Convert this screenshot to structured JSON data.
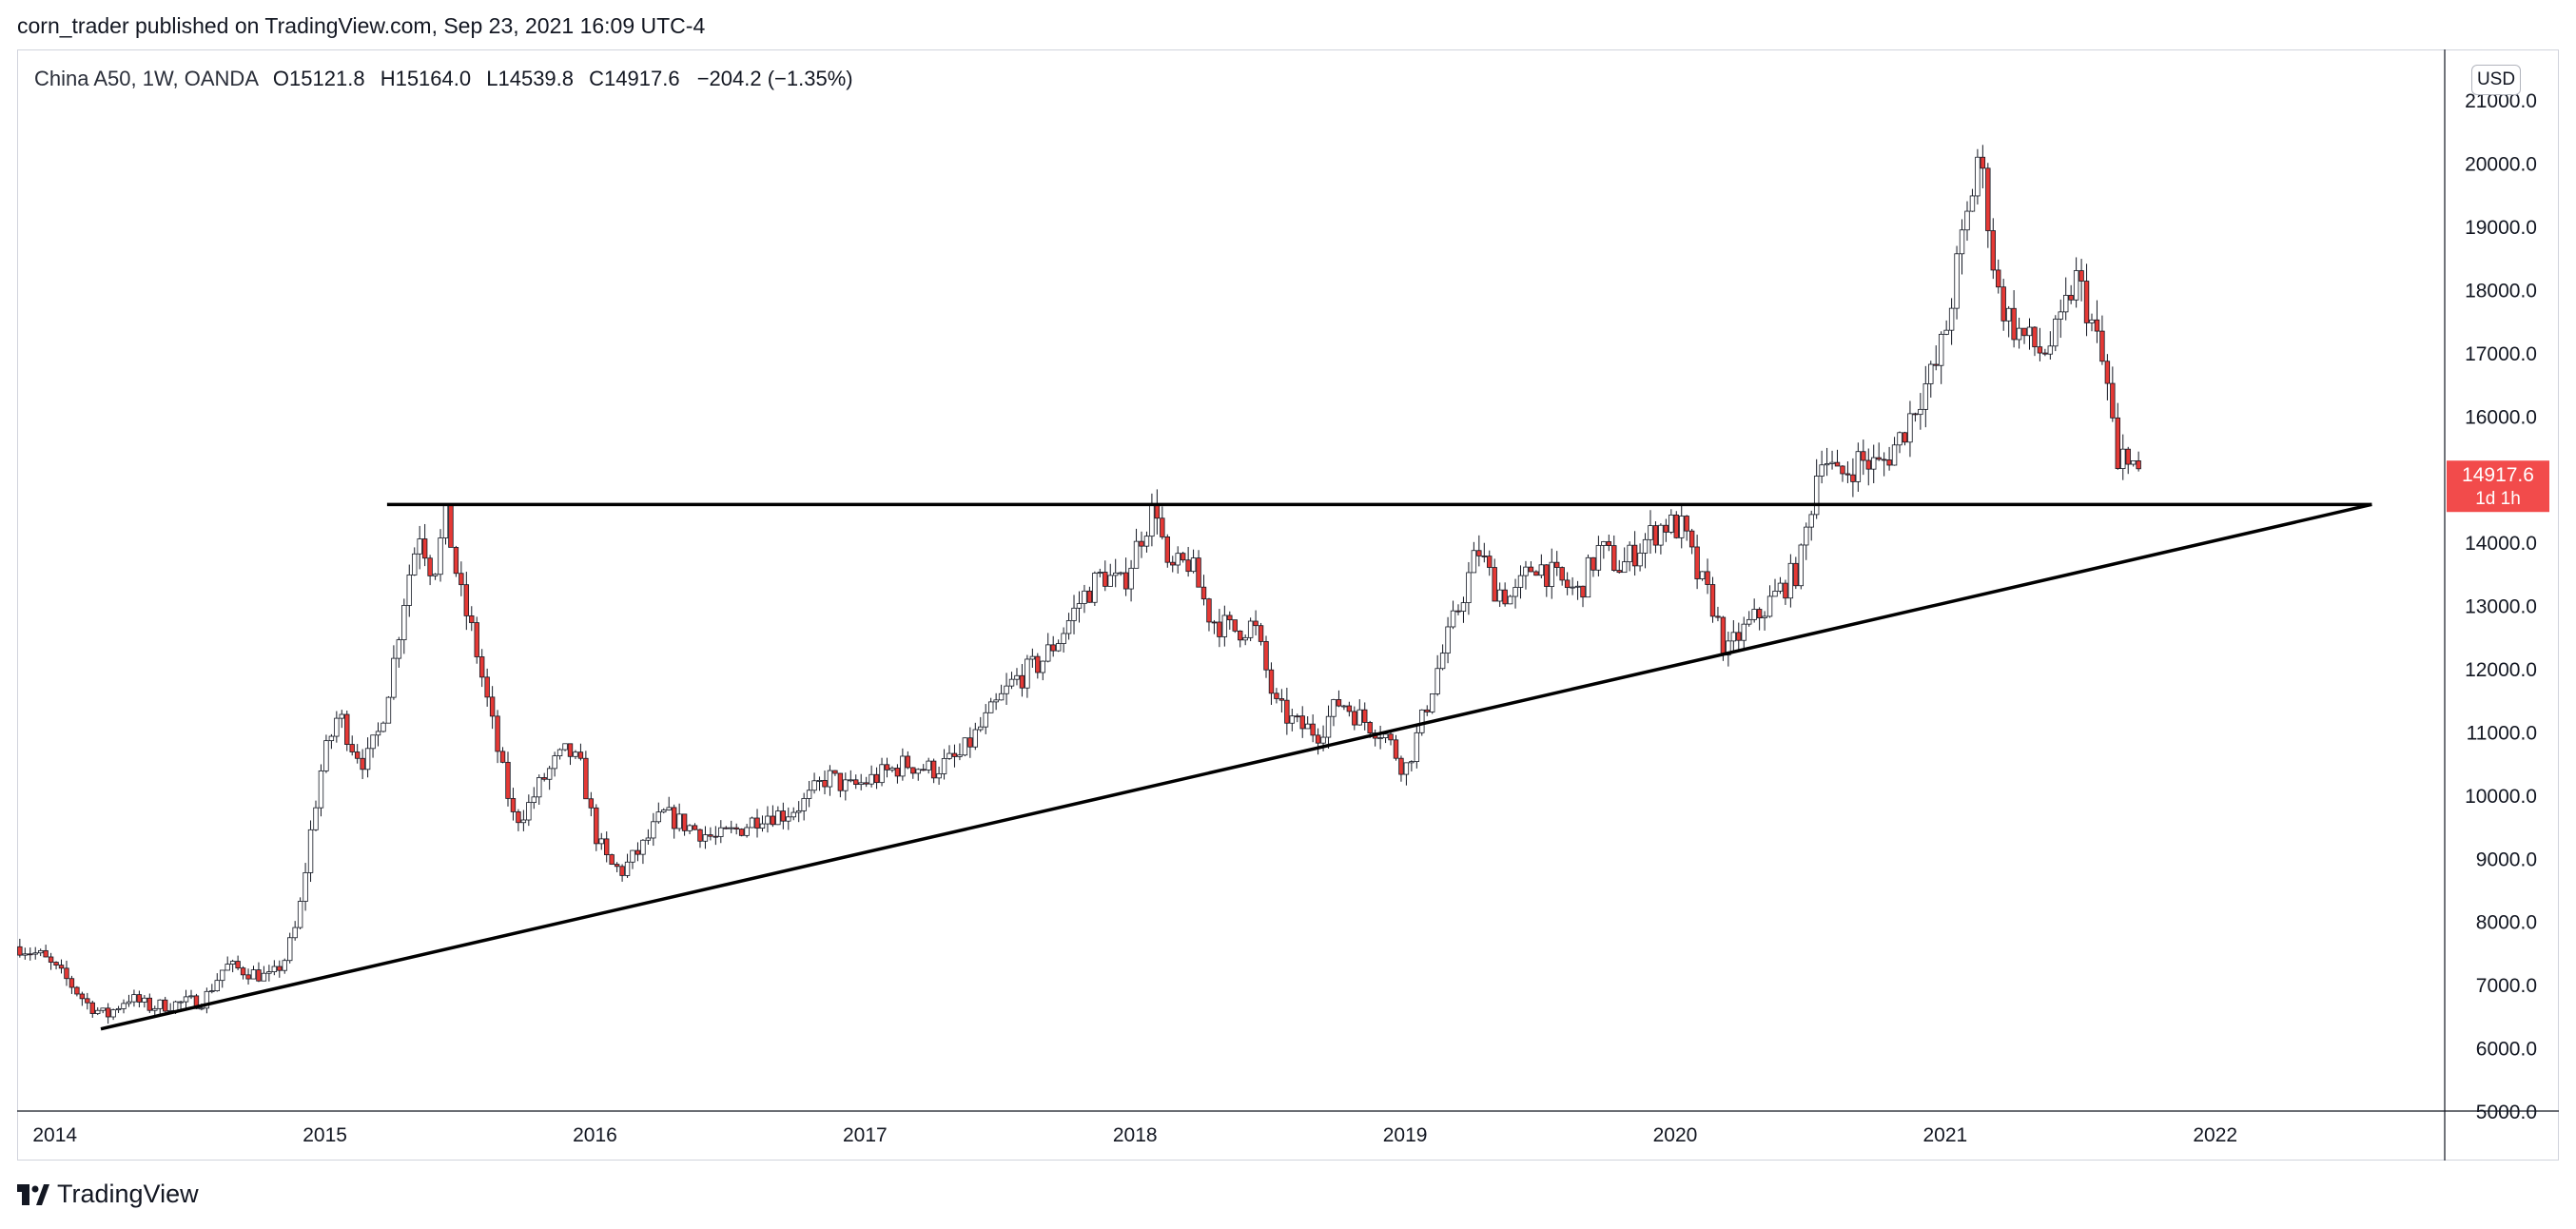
{
  "header": {
    "published": "corn_trader published on TradingView.com, Sep 23, 2021 16:09 UTC-4"
  },
  "legend": {
    "symbol": "China A50, 1W, OANDA",
    "open_label": "O",
    "open": "15121.8",
    "high_label": "H",
    "high": "15164.0",
    "low_label": "L",
    "low": "14539.8",
    "close_label": "C",
    "close": "14917.6",
    "change": "−204.2 (−1.35%)"
  },
  "currency_button": "USD",
  "price_tag": {
    "price": "14917.6",
    "countdown": "1d 1h"
  },
  "footer": {
    "brand": "TradingView"
  },
  "colors": {
    "up": "#ffffff",
    "down": "#e53935",
    "price_tag": "#f24b4b",
    "grid_text": "#131722"
  },
  "chart_data": {
    "type": "candlestick",
    "title": "China A50, 1W, OANDA",
    "ylim": [
      5000,
      21500
    ],
    "y_ticks": [
      "21000.0",
      "20000.0",
      "19000.0",
      "18000.0",
      "17000.0",
      "16000.0",
      "14000.0",
      "13000.0",
      "12000.0",
      "11000.0",
      "10000.0",
      "9000.0",
      "8000.0",
      "7000.0",
      "6000.0",
      "5000.0"
    ],
    "x_ticks": [
      "2014",
      "2015",
      "2016",
      "2017",
      "2018",
      "2019",
      "2020",
      "2021",
      "2022"
    ],
    "x_range": [
      2013.86,
      2022.85
    ],
    "close_path": [
      [
        2013.87,
        7600
      ],
      [
        2013.95,
        7450
      ],
      [
        2014.05,
        7050
      ],
      [
        2014.12,
        6700
      ],
      [
        2014.19,
        6500
      ],
      [
        2014.27,
        6800
      ],
      [
        2014.35,
        6650
      ],
      [
        2014.45,
        6700
      ],
      [
        2014.55,
        6750
      ],
      [
        2014.63,
        7300
      ],
      [
        2014.72,
        7200
      ],
      [
        2014.8,
        7100
      ],
      [
        2014.85,
        7400
      ],
      [
        2014.9,
        8000
      ],
      [
        2014.95,
        9500
      ],
      [
        2014.99,
        10500
      ],
      [
        2015.05,
        11300
      ],
      [
        2015.1,
        10800
      ],
      [
        2015.15,
        10500
      ],
      [
        2015.2,
        11000
      ],
      [
        2015.25,
        12000
      ],
      [
        2015.3,
        13300
      ],
      [
        2015.35,
        14200
      ],
      [
        2015.4,
        13500
      ],
      [
        2015.45,
        14400
      ],
      [
        2015.5,
        13200
      ],
      [
        2015.55,
        12500
      ],
      [
        2015.6,
        11500
      ],
      [
        2015.65,
        10500
      ],
      [
        2015.7,
        9600
      ],
      [
        2015.75,
        9800
      ],
      [
        2015.8,
        10200
      ],
      [
        2015.85,
        10500
      ],
      [
        2015.9,
        10700
      ],
      [
        2015.95,
        10400
      ],
      [
        2016.0,
        9400
      ],
      [
        2016.05,
        8900
      ],
      [
        2016.1,
        8800
      ],
      [
        2016.18,
        9200
      ],
      [
        2016.25,
        9700
      ],
      [
        2016.35,
        9500
      ],
      [
        2016.45,
        9300
      ],
      [
        2016.55,
        9500
      ],
      [
        2016.62,
        9700
      ],
      [
        2016.7,
        9700
      ],
      [
        2016.78,
        9900
      ],
      [
        2016.86,
        10300
      ],
      [
        2016.94,
        10100
      ],
      [
        2017.05,
        10300
      ],
      [
        2017.15,
        10500
      ],
      [
        2017.25,
        10400
      ],
      [
        2017.35,
        10600
      ],
      [
        2017.45,
        11200
      ],
      [
        2017.55,
        11800
      ],
      [
        2017.65,
        12100
      ],
      [
        2017.72,
        12500
      ],
      [
        2017.8,
        13100
      ],
      [
        2017.88,
        13500
      ],
      [
        2017.95,
        13300
      ],
      [
        2018.03,
        14200
      ],
      [
        2018.08,
        14600
      ],
      [
        2018.12,
        13500
      ],
      [
        2018.2,
        13700
      ],
      [
        2018.28,
        12800
      ],
      [
        2018.36,
        12600
      ],
      [
        2018.44,
        12700
      ],
      [
        2018.52,
        11400
      ],
      [
        2018.6,
        11100
      ],
      [
        2018.68,
        11000
      ],
      [
        2018.76,
        11500
      ],
      [
        2018.84,
        11200
      ],
      [
        2018.92,
        11000
      ],
      [
        2019.0,
        10400
      ],
      [
        2019.05,
        11000
      ],
      [
        2019.12,
        12000
      ],
      [
        2019.2,
        13000
      ],
      [
        2019.27,
        13900
      ],
      [
        2019.33,
        13300
      ],
      [
        2019.4,
        13100
      ],
      [
        2019.48,
        13700
      ],
      [
        2019.56,
        13400
      ],
      [
        2019.64,
        13200
      ],
      [
        2019.72,
        13900
      ],
      [
        2019.8,
        13600
      ],
      [
        2019.88,
        14000
      ],
      [
        2019.96,
        14300
      ],
      [
        2020.03,
        14200
      ],
      [
        2020.08,
        13500
      ],
      [
        2020.14,
        13000
      ],
      [
        2020.19,
        12200
      ],
      [
        2020.23,
        12500
      ],
      [
        2020.3,
        12800
      ],
      [
        2020.38,
        13200
      ],
      [
        2020.46,
        13600
      ],
      [
        2020.5,
        14500
      ],
      [
        2020.54,
        15500
      ],
      [
        2020.6,
        15000
      ],
      [
        2020.68,
        15300
      ],
      [
        2020.76,
        15200
      ],
      [
        2020.84,
        15700
      ],
      [
        2020.9,
        16300
      ],
      [
        2020.96,
        16700
      ],
      [
        2021.0,
        17300
      ],
      [
        2021.05,
        18500
      ],
      [
        2021.09,
        19300
      ],
      [
        2021.12,
        20100
      ],
      [
        2021.15,
        19500
      ],
      [
        2021.19,
        18000
      ],
      [
        2021.24,
        17500
      ],
      [
        2021.3,
        17200
      ],
      [
        2021.36,
        17000
      ],
      [
        2021.42,
        17300
      ],
      [
        2021.48,
        18200
      ],
      [
        2021.52,
        17800
      ],
      [
        2021.56,
        17200
      ],
      [
        2021.61,
        16300
      ],
      [
        2021.64,
        15000
      ],
      [
        2021.67,
        15600
      ],
      [
        2021.7,
        15200
      ],
      [
        2021.72,
        14917.6
      ]
    ],
    "drawn_lines": [
      {
        "name": "resistance-line",
        "from": [
          2015.23,
          14600
        ],
        "to": [
          2022.58,
          14600
        ]
      },
      {
        "name": "rising-trendline",
        "from": [
          2014.17,
          6300
        ],
        "to": [
          2022.58,
          14600
        ]
      }
    ],
    "last_price": 14917.6
  }
}
